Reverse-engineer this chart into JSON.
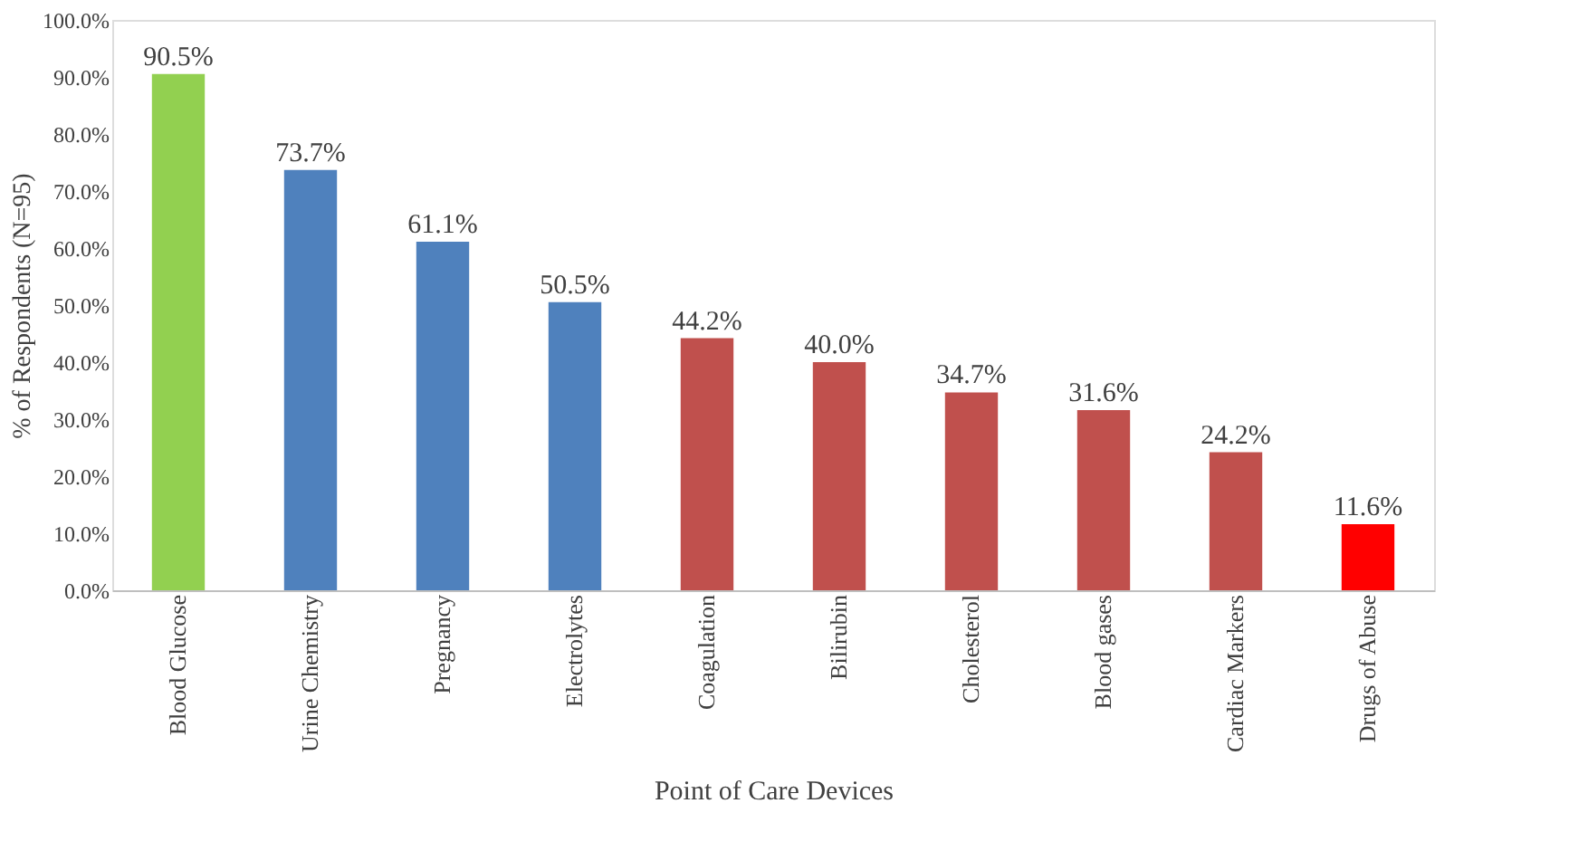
{
  "chart_data": {
    "type": "bar",
    "xlabel": "Point of Care Devices",
    "ylabel": "% of Respondents (N=95)",
    "categories": [
      "Blood Glucose",
      "Urine Chemistry",
      "Pregnancy",
      "Electrolytes",
      "Coagulation",
      "Bilirubin",
      "Cholesterol",
      "Blood gases",
      "Cardiac Markers",
      "Drugs of Abuse"
    ],
    "values": [
      90.5,
      73.7,
      61.1,
      50.5,
      44.2,
      40.0,
      34.7,
      31.6,
      24.2,
      11.6
    ],
    "value_labels": [
      "90.5%",
      "73.7%",
      "61.1%",
      "50.5%",
      "44.2%",
      "40.0%",
      "34.7%",
      "31.6%",
      "24.2%",
      "11.6%"
    ],
    "colors": [
      "#92d050",
      "#4f81bd",
      "#4f81bd",
      "#4f81bd",
      "#c0504d",
      "#c0504d",
      "#c0504d",
      "#c0504d",
      "#c0504d",
      "#ff0000"
    ],
    "ylim": [
      0,
      100
    ],
    "yticks": [
      {
        "value": 0,
        "label": "0.0%"
      },
      {
        "value": 10,
        "label": "10.0%"
      },
      {
        "value": 20,
        "label": "20.0%"
      },
      {
        "value": 30,
        "label": "30.0%"
      },
      {
        "value": 40,
        "label": "40.0%"
      },
      {
        "value": 50,
        "label": "50.0%"
      },
      {
        "value": 60,
        "label": "60.0%"
      },
      {
        "value": 70,
        "label": "70.0%"
      },
      {
        "value": 80,
        "label": "80.0%"
      },
      {
        "value": 90,
        "label": "90.0%"
      },
      {
        "value": 100,
        "label": "100.0%"
      }
    ],
    "grid": false
  }
}
